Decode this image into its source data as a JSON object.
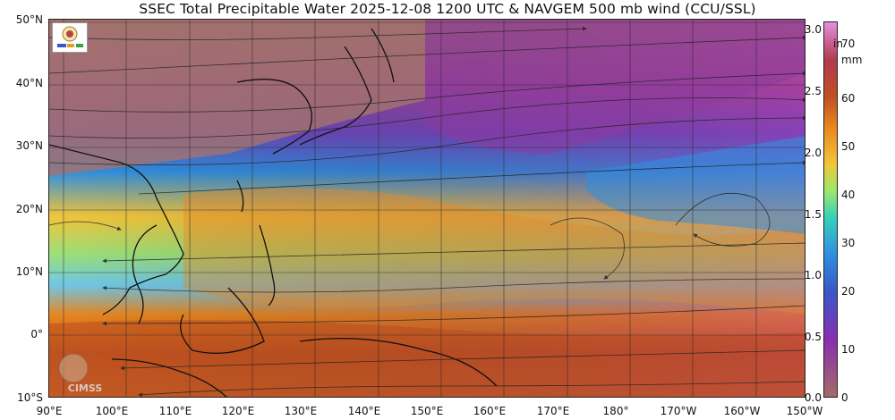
{
  "title": "SSEC Total Precipitable Water  2025-12-08 1200 UTC & NAVGEM 500 mb wind (CCU/SSL)",
  "lat_labels": [
    "50°N",
    "40°N",
    "30°N",
    "20°N",
    "10°N",
    "0°",
    "10°S"
  ],
  "lon_labels": [
    "90°E",
    "100°E",
    "110°E",
    "120°E",
    "130°E",
    "140°E",
    "150°E",
    "160°E",
    "170°E",
    "180°",
    "170°W",
    "160°W",
    "150°W"
  ],
  "colorbar": {
    "unit_in": "in",
    "unit_mm": "mm",
    "inch_ticks": [
      "3.0",
      "2.5",
      "2.0",
      "1.5",
      "1.0",
      "0.5",
      "0.0"
    ],
    "mm_ticks": [
      "70",
      "60",
      "50",
      "40",
      "30",
      "20",
      "10",
      "0"
    ],
    "colors_top_to_bottom": [
      "#e58fe0",
      "#b13a4e",
      "#c25020",
      "#e8861f",
      "#f2c73a",
      "#9be86b",
      "#37d3b8",
      "#2f8fe0",
      "#3a56c8",
      "#8a2fb0",
      "#a56b69"
    ]
  },
  "logos": {
    "cimss": "CIMSS"
  },
  "map_colors": {
    "land_desert": "#a4736e",
    "dry": "#8a3ea6",
    "moist": "#e38a2a",
    "very_moist": "#b84a1e",
    "mid": "#2fa0e8"
  }
}
